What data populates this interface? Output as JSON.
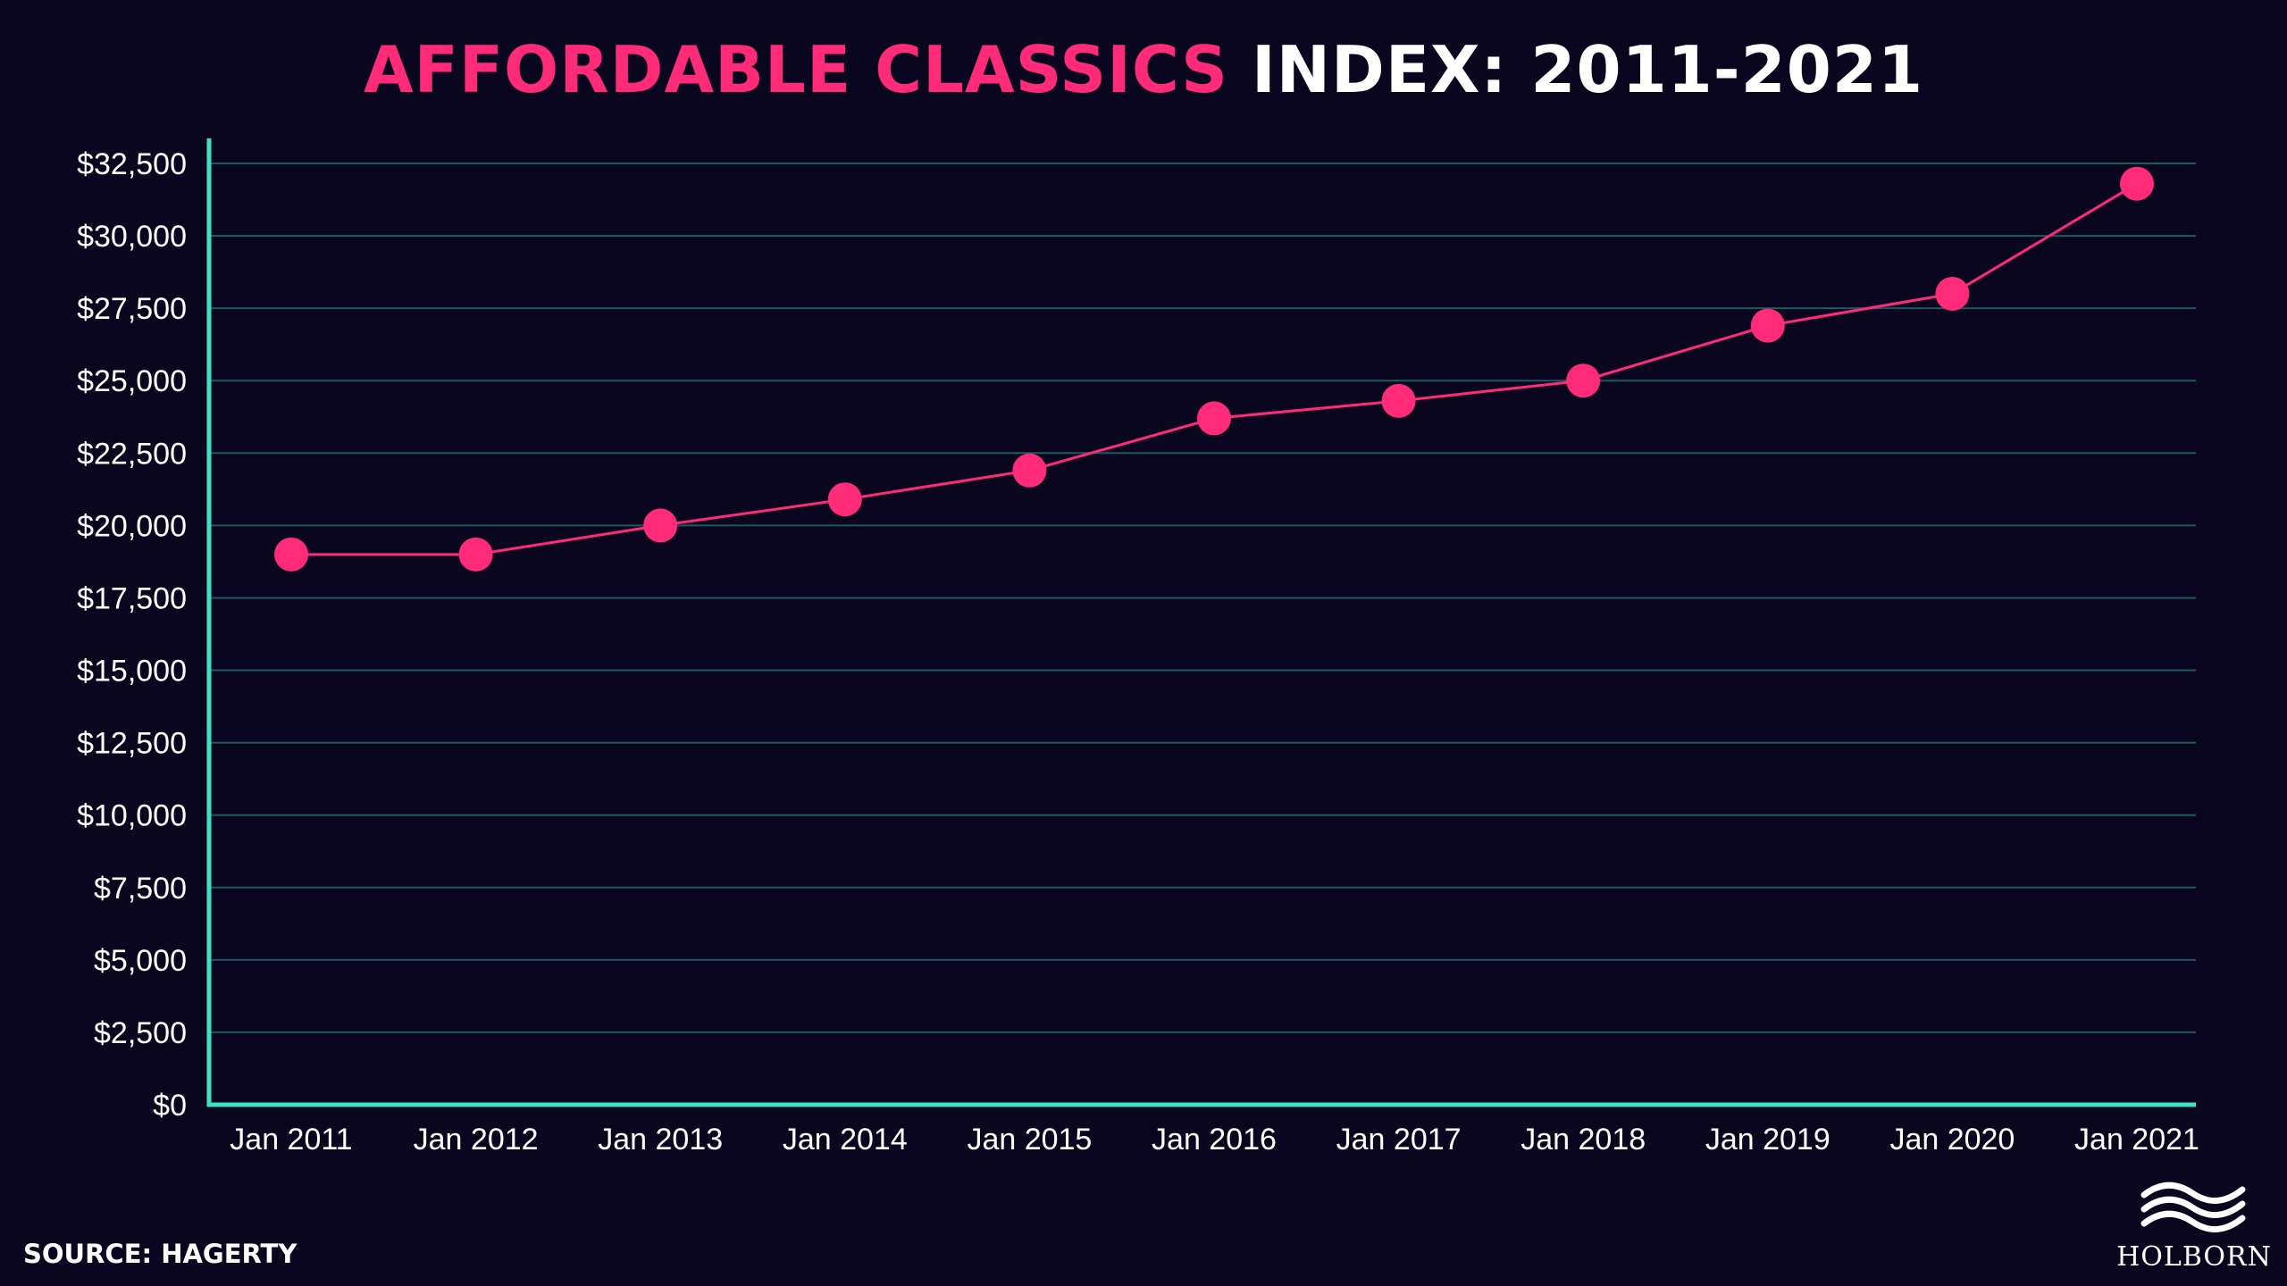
{
  "title": {
    "highlight": "AFFORDABLE CLASSICS",
    "rest": " INDEX: 2011-2021"
  },
  "source": "SOURCE: HAGERTY",
  "logo": {
    "text": "HOLBORN",
    "icon": "waves-icon"
  },
  "colors": {
    "background": "#0b0620",
    "accent": "#ff2a78",
    "axis": "#3ee0c4",
    "grid": "#1c5a63"
  },
  "chart_data": {
    "type": "line",
    "title": "AFFORDABLE CLASSICS INDEX: 2011-2021",
    "xlabel": "",
    "ylabel": "",
    "categories": [
      "Jan 2011",
      "Jan 2012",
      "Jan 2013",
      "Jan 2014",
      "Jan 2015",
      "Jan 2016",
      "Jan 2017",
      "Jan 2018",
      "Jan 2019",
      "Jan 2020",
      "Jan 2021"
    ],
    "series": [
      {
        "values": [
          19000,
          19000,
          20000,
          20900,
          21900,
          23700,
          24300,
          25000,
          26900,
          28000,
          31800
        ],
        "color": "#ff2a78"
      }
    ],
    "yticks": [
      0,
      2500,
      5000,
      7500,
      10000,
      12500,
      15000,
      17500,
      20000,
      22500,
      25000,
      27500,
      30000,
      32500
    ],
    "ytick_labels": [
      "$0",
      "$2,500",
      "$5,000",
      "$7,500",
      "$10,000",
      "$12,500",
      "$15,000",
      "$17,500",
      "$20,000",
      "$22,500",
      "$25,000",
      "$27,500",
      "$30,000",
      "$32,500"
    ],
    "ylim": [
      0,
      32500
    ],
    "grid": true,
    "legend": "none"
  }
}
